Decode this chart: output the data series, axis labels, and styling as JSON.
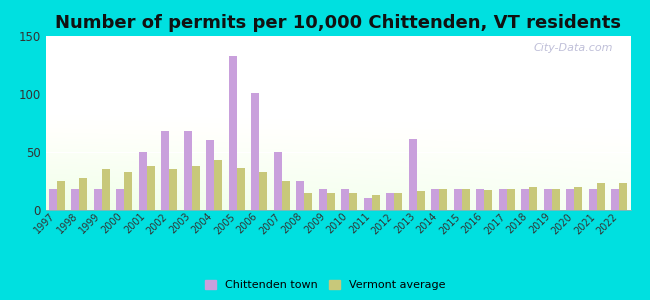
{
  "title": "Number of permits per 10,000 Chittenden, VT residents",
  "years": [
    1997,
    1998,
    1999,
    2000,
    2001,
    2002,
    2003,
    2004,
    2005,
    2006,
    2007,
    2008,
    2009,
    2010,
    2011,
    2012,
    2013,
    2014,
    2015,
    2016,
    2017,
    2018,
    2019,
    2020,
    2021,
    2022
  ],
  "chittenden": [
    18,
    18,
    18,
    18,
    50,
    68,
    68,
    60,
    133,
    101,
    50,
    25,
    18,
    18,
    10,
    15,
    61,
    18,
    18,
    18,
    18,
    18,
    18,
    18,
    18,
    18
  ],
  "vermont_avg": [
    25,
    28,
    35,
    33,
    38,
    35,
    38,
    43,
    36,
    33,
    25,
    15,
    15,
    15,
    13,
    15,
    16,
    18,
    18,
    17,
    18,
    20,
    18,
    20,
    23,
    23
  ],
  "chittenden_color": "#c9a0dc",
  "vermont_color": "#c8c87a",
  "outer_bg": "#00e0e0",
  "ylim": [
    0,
    150
  ],
  "yticks": [
    0,
    50,
    100,
    150
  ],
  "title_fontsize": 13,
  "watermark": "City-Data.com"
}
